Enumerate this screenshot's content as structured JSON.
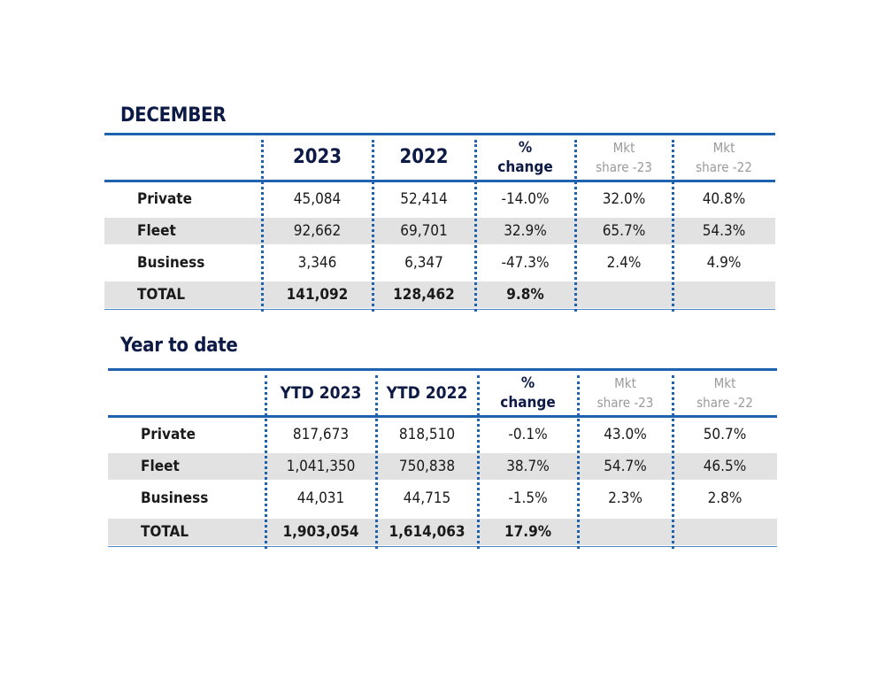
{
  "december": {
    "title": "DECEMBER",
    "headers": [
      "2023",
      "2022",
      "%",
      "change",
      "Mkt",
      "share -23",
      "Mkt",
      "share -22"
    ],
    "rows": [
      {
        "label": "Private",
        "values": [
          "45,084",
          "52,414",
          "-14.0%",
          "32.0%",
          "40.8%"
        ]
      },
      {
        "label": "Fleet",
        "values": [
          "92,662",
          "69,701",
          "32.9%",
          "65.7%",
          "54.3%"
        ]
      },
      {
        "label": "Business",
        "values": [
          "3,346",
          "6,347",
          "-47.3%",
          "2.4%",
          "4.9%"
        ]
      },
      {
        "label": "TOTAL",
        "values": [
          "141,092",
          "128,462",
          "9.8%",
          "",
          ""
        ]
      }
    ]
  },
  "ytd": {
    "title": "Year to date",
    "headers": [
      "YTD 2023",
      "YTD 2022",
      "%",
      "change",
      "Mkt",
      "share -23",
      "Mkt",
      "share -22"
    ],
    "rows": [
      {
        "label": "Private",
        "values": [
          "817,673",
          "818,510",
          "-0.1%",
          "43.0%",
          "50.7%"
        ]
      },
      {
        "label": "Fleet",
        "values": [
          "1,041,350",
          "750,838",
          "38.7%",
          "54.7%",
          "46.5%"
        ]
      },
      {
        "label": "Business",
        "values": [
          "44,031",
          "44,715",
          "-1.5%",
          "2.3%",
          "2.8%"
        ]
      },
      {
        "label": "TOTAL",
        "values": [
          "1,903,054",
          "1,614,063",
          "17.9%",
          "",
          ""
        ]
      }
    ]
  }
}
